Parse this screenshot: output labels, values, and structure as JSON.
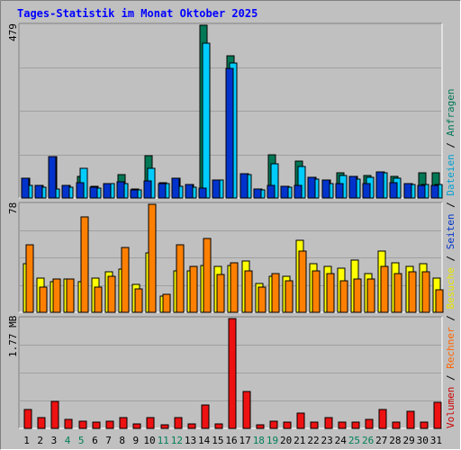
{
  "title": "Tages-Statistik im Monat Oktober 2025",
  "legend": {
    "items": [
      {
        "label": "Volumen",
        "color": "#cc0000"
      },
      {
        "label": "Rechner",
        "color": "#ff6600"
      },
      {
        "label": "Besuche",
        "color": "#e6e600"
      },
      {
        "label": "Seiten",
        "color": "#0033cc"
      },
      {
        "label": "Dateien",
        "color": "#00a0d0"
      },
      {
        "label": "Anfragen",
        "color": "#007755"
      }
    ],
    "separator": " / "
  },
  "chart_data": [
    {
      "type": "bar",
      "name": "Anfragen / Dateien / Seiten",
      "y_max_label": "479",
      "ylim": [
        0,
        479
      ],
      "categories": [
        "1",
        "2",
        "3",
        "4",
        "5",
        "6",
        "7",
        "8",
        "9",
        "10",
        "11",
        "12",
        "13",
        "14",
        "15",
        "16",
        "17",
        "18",
        "19",
        "20",
        "21",
        "22",
        "23",
        "24",
        "25",
        "26",
        "27",
        "28",
        "29",
        "30",
        "31"
      ],
      "weekend_days": [
        "4",
        "5",
        "11",
        "12",
        "18",
        "19",
        "25",
        "26"
      ],
      "series": [
        {
          "name": "Anfragen",
          "color": "#007755",
          "values": [
            56,
            34,
            116,
            34,
            61,
            32,
            41,
            64,
            24,
            118,
            43,
            54,
            38,
            479,
            51,
            393,
            68,
            25,
            119,
            32,
            103,
            58,
            51,
            69,
            59,
            63,
            72,
            60,
            40,
            70,
            70
          ]
        },
        {
          "name": "Dateien",
          "color": "#00ccff",
          "values": [
            35,
            31,
            26,
            31,
            83,
            27,
            41,
            40,
            22,
            83,
            41,
            33,
            30,
            430,
            49,
            375,
            64,
            23,
            96,
            29,
            87,
            53,
            40,
            63,
            53,
            58,
            69,
            56,
            37,
            37,
            37
          ]
        },
        {
          "name": "Seiten",
          "color": "#0033cc",
          "values": [
            56,
            34,
            116,
            34,
            43,
            30,
            40,
            44,
            22,
            47,
            40,
            54,
            38,
            27,
            51,
            360,
            68,
            25,
            34,
            32,
            36,
            58,
            51,
            41,
            59,
            39,
            72,
            43,
            40,
            34,
            34
          ]
        }
      ]
    },
    {
      "type": "bar",
      "name": "Besuche / Rechner",
      "y_max_label": "78",
      "ylim": [
        0,
        78
      ],
      "categories": [
        "1",
        "2",
        "3",
        "4",
        "5",
        "6",
        "7",
        "8",
        "9",
        "10",
        "11",
        "12",
        "13",
        "14",
        "15",
        "16",
        "17",
        "18",
        "19",
        "20",
        "21",
        "22",
        "23",
        "24",
        "25",
        "26",
        "27",
        "28",
        "29",
        "30",
        "31"
      ],
      "series": [
        {
          "name": "Besuche",
          "color": "#ffff00",
          "values": [
            35,
            25,
            22,
            24,
            22,
            25,
            29,
            31,
            20,
            43,
            12,
            30,
            30,
            34,
            33,
            34,
            37,
            21,
            26,
            26,
            52,
            35,
            33,
            32,
            38,
            28,
            44,
            36,
            33,
            35,
            25
          ]
        },
        {
          "name": "Rechner",
          "color": "#ff8000",
          "values": [
            49,
            18,
            24,
            24,
            69,
            18,
            26,
            47,
            17,
            78,
            13,
            49,
            33,
            53,
            27,
            36,
            30,
            18,
            28,
            23,
            44,
            30,
            28,
            23,
            24,
            24,
            33,
            28,
            29,
            29,
            16
          ]
        }
      ]
    },
    {
      "type": "bar",
      "name": "Volumen",
      "y_max_label": "1.77 MB",
      "ylim": [
        0,
        1.77
      ],
      "unit": "MB",
      "categories": [
        "1",
        "2",
        "3",
        "4",
        "5",
        "6",
        "7",
        "8",
        "9",
        "10",
        "11",
        "12",
        "13",
        "14",
        "15",
        "16",
        "17",
        "18",
        "19",
        "20",
        "21",
        "22",
        "23",
        "24",
        "25",
        "26",
        "27",
        "28",
        "29",
        "30",
        "31"
      ],
      "series": [
        {
          "name": "Volumen",
          "color": "#ee1111",
          "values": [
            0.3,
            0.17,
            0.44,
            0.14,
            0.11,
            0.1,
            0.11,
            0.17,
            0.07,
            0.17,
            0.06,
            0.17,
            0.07,
            0.38,
            0.07,
            1.77,
            0.6,
            0.06,
            0.12,
            0.1,
            0.24,
            0.1,
            0.17,
            0.1,
            0.1,
            0.15,
            0.3,
            0.1,
            0.28,
            0.1,
            0.42
          ]
        }
      ]
    }
  ]
}
